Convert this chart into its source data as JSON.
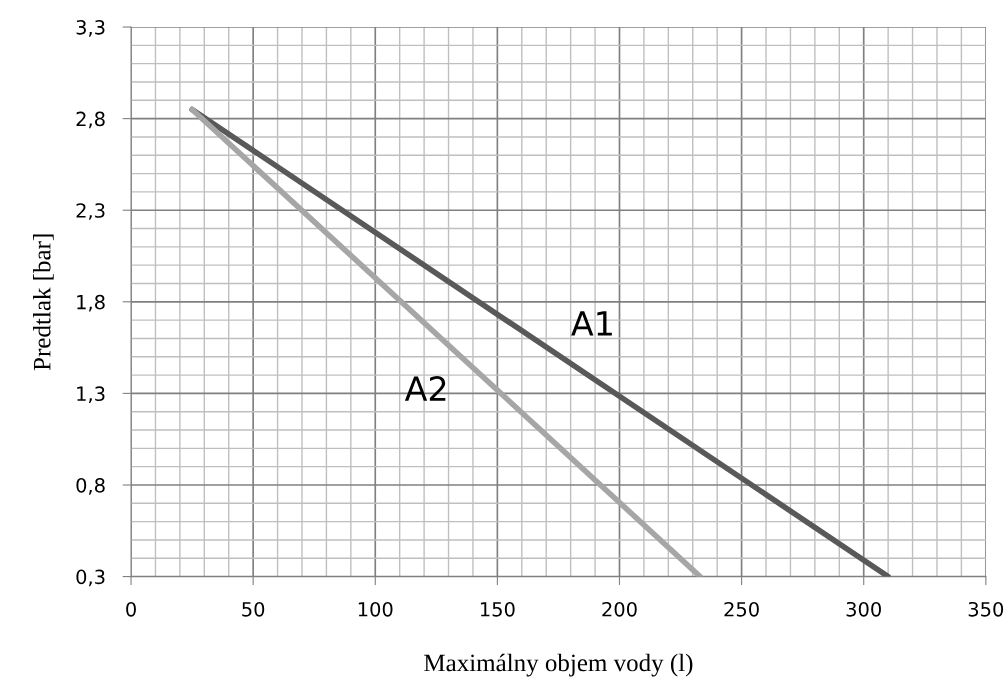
{
  "chart_data": {
    "type": "line",
    "xlabel": "Maximálny objem vody (l)",
    "ylabel": "Predtlak [bar]",
    "series": [
      {
        "name": "A1",
        "x": [
          25,
          310
        ],
        "values": [
          2.85,
          0.3
        ],
        "color": "#595959"
      },
      {
        "name": "A2",
        "x": [
          25,
          233
        ],
        "values": [
          2.85,
          0.3
        ],
        "color": "#a6a6a6"
      }
    ],
    "xlim": [
      0,
      350
    ],
    "ylim": [
      0.3,
      3.3
    ],
    "xticks": [
      0,
      50,
      100,
      150,
      200,
      250,
      300,
      350
    ],
    "yticks": [
      {
        "value": 0.3,
        "label": "0,3"
      },
      {
        "value": 0.8,
        "label": "0,8"
      },
      {
        "value": 1.3,
        "label": "1,3"
      },
      {
        "value": 1.8,
        "label": "1,8"
      },
      {
        "value": 2.3,
        "label": "2,3"
      },
      {
        "value": 2.8,
        "label": "2,8"
      },
      {
        "value": 3.3,
        "label": "3,3"
      }
    ],
    "grid": true,
    "marker": "none",
    "line_style": "solid"
  }
}
